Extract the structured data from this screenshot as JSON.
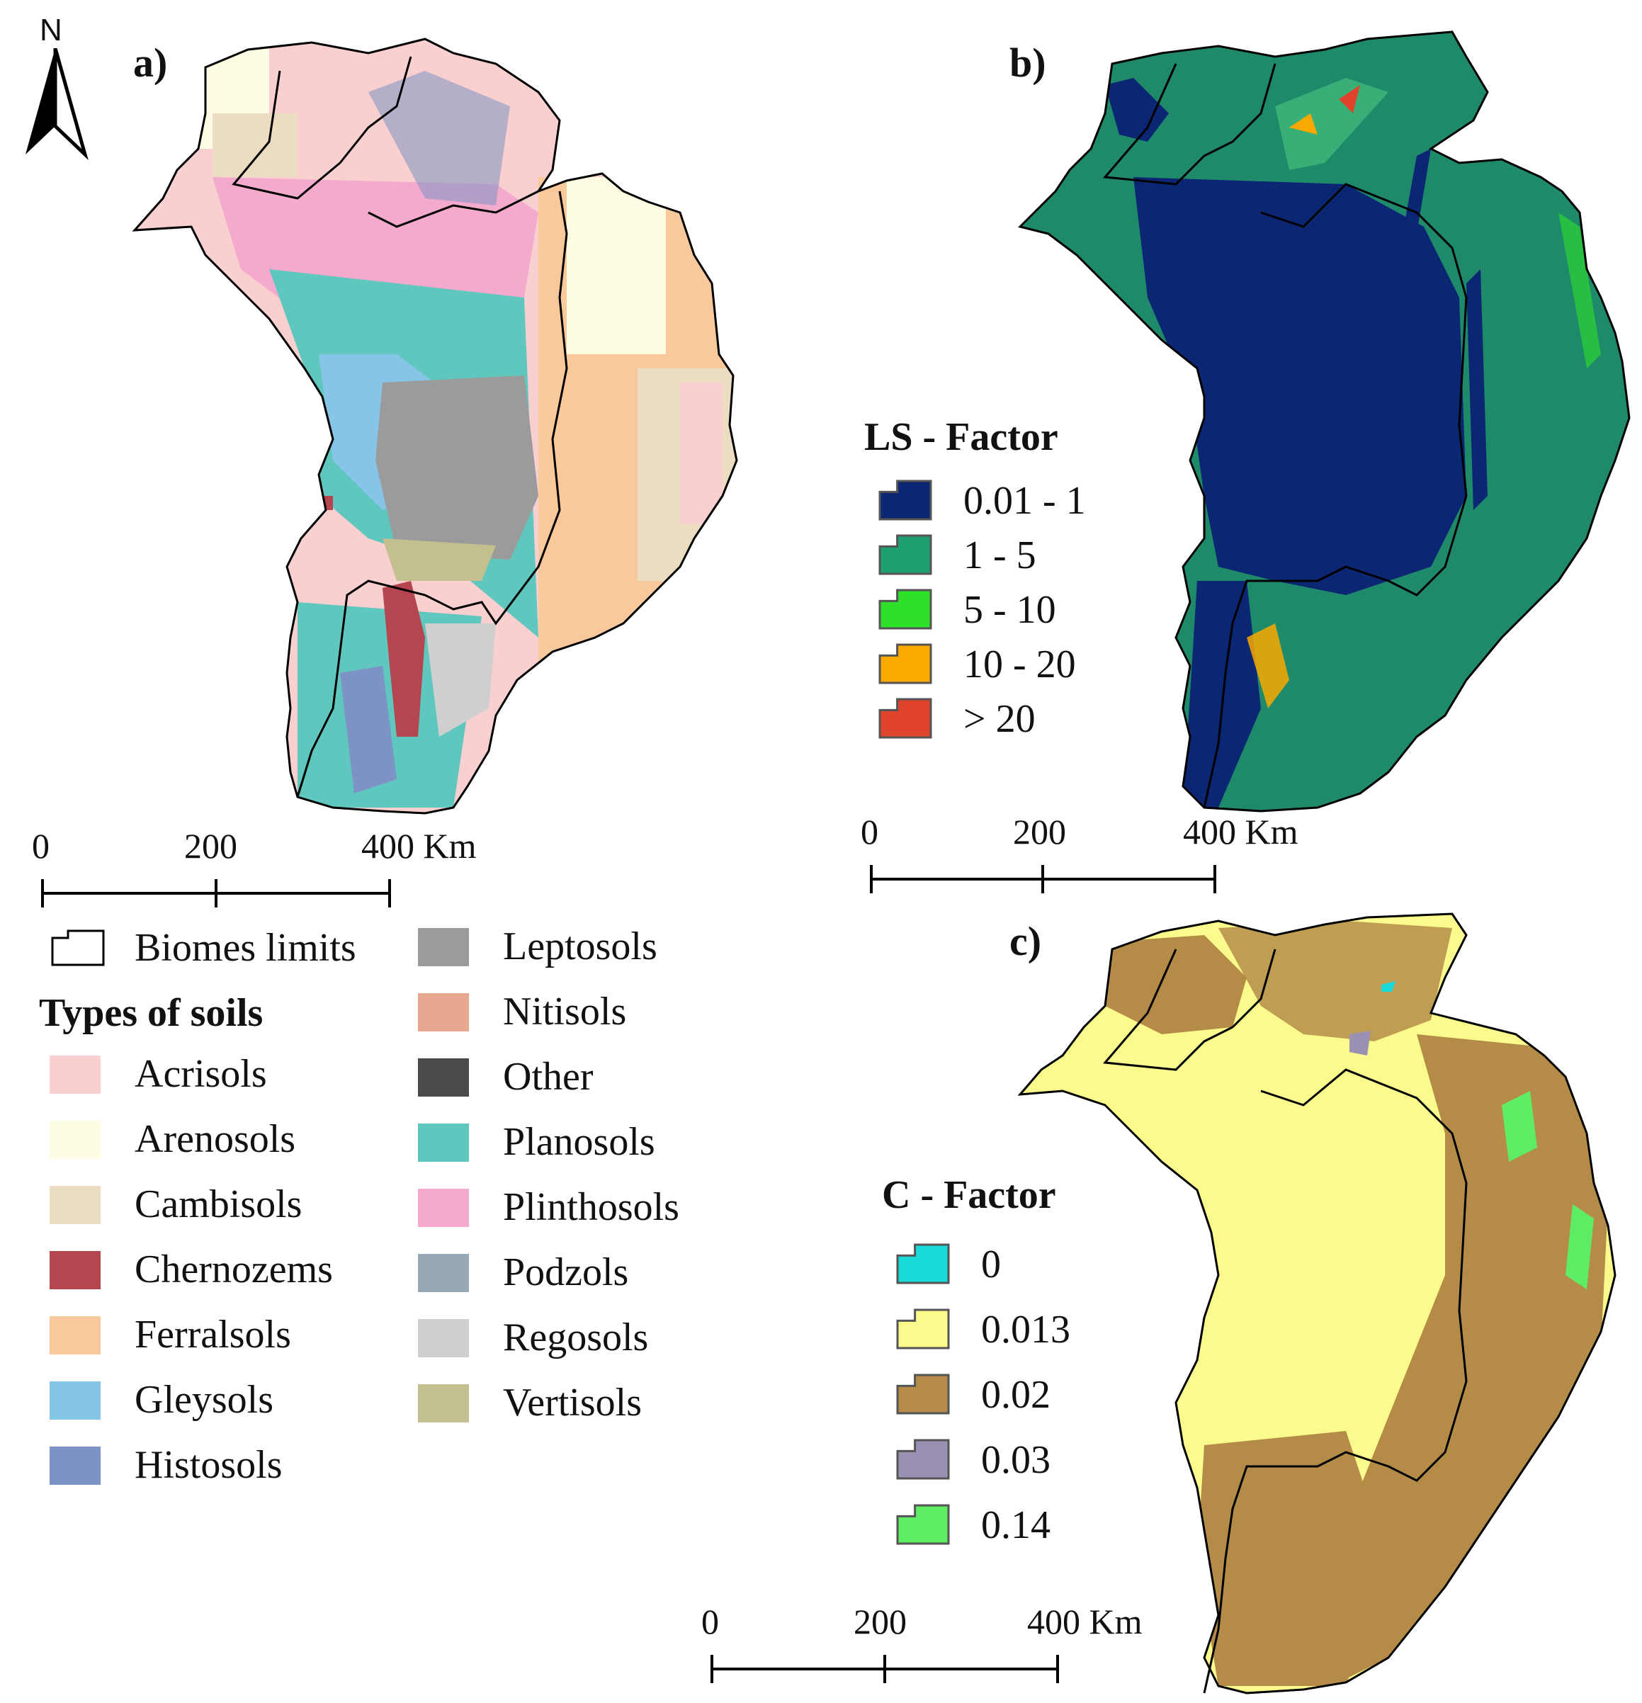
{
  "north_arrow": {
    "label": "N",
    "icon": "north-arrow-icon"
  },
  "panels": {
    "a": {
      "label": "a)"
    },
    "b": {
      "label": "b)"
    },
    "c": {
      "label": "c)"
    }
  },
  "scalebars": {
    "a": {
      "ticks": [
        "0",
        "200",
        "400 Km"
      ]
    },
    "b": {
      "ticks": [
        "0",
        "200",
        "400 Km"
      ]
    },
    "c": {
      "ticks": [
        "0",
        "200",
        "400 Km"
      ]
    }
  },
  "soil_legend": {
    "biomes_limits": "Biomes limits",
    "title": "Types of soils",
    "items": [
      {
        "label": "Acrisols",
        "color": "#f9cfcf"
      },
      {
        "label": "Arenosols",
        "color": "#fefde3"
      },
      {
        "label": "Cambisols",
        "color": "#ecdcc1"
      },
      {
        "label": "Chernozems",
        "color": "#b5454e"
      },
      {
        "label": "Ferralsols",
        "color": "#f9c99c"
      },
      {
        "label": "Gleysols",
        "color": "#86c5e8"
      },
      {
        "label": "Histosols",
        "color": "#7e93c5"
      },
      {
        "label": "Leptosols",
        "color": "#9b9b9b"
      },
      {
        "label": "Nitisols",
        "color": "#e8a78f"
      },
      {
        "label": "Other",
        "color": "#4a4a4a"
      },
      {
        "label": "Planosols",
        "color": "#5fc7bd"
      },
      {
        "label": "Plinthosols",
        "color": "#f3aacd"
      },
      {
        "label": "Podzols",
        "color": "#97a8b7"
      },
      {
        "label": "Regosols",
        "color": "#cfcfcf"
      },
      {
        "label": "Vertisols",
        "color": "#c3c08f"
      }
    ]
  },
  "ls_legend": {
    "title": "LS - Factor",
    "items": [
      {
        "label": "0.01 - 1",
        "color": "#0b2672"
      },
      {
        "label": "1 - 5",
        "color": "#1fa070"
      },
      {
        "label": "5 - 10",
        "color": "#2fe02a"
      },
      {
        "label": "10 - 20",
        "color": "#f9a900"
      },
      {
        "label": "> 20",
        "color": "#e0442c"
      }
    ]
  },
  "c_legend": {
    "title": "C - Factor",
    "items": [
      {
        "label": "0",
        "color": "#19d9d9"
      },
      {
        "label": "0.013",
        "color": "#fbfa8c"
      },
      {
        "label": "0.02",
        "color": "#b48c48"
      },
      {
        "label": "0.03",
        "color": "#9a90b4"
      },
      {
        "label": "0.14",
        "color": "#5dec64"
      }
    ]
  }
}
